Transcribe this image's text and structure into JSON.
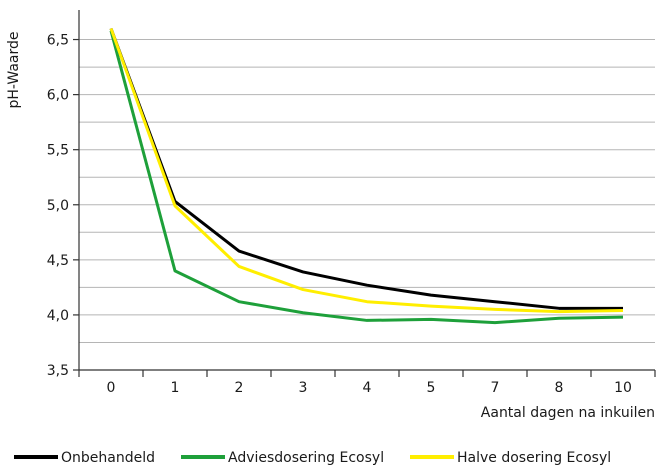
{
  "chart_data": {
    "type": "line",
    "title": "",
    "xlabel": "Aantal dagen na inkuilen",
    "ylabel": "pH-Waarde",
    "categories": [
      "0",
      "1",
      "2",
      "3",
      "4",
      "5",
      "7",
      "8",
      "10"
    ],
    "ylim": [
      3.5,
      6.75
    ],
    "yticks": [
      "3,5",
      "4,0",
      "4,5",
      "5,0",
      "5,5",
      "6,0",
      "6,5"
    ],
    "ytick_values": [
      3.5,
      4.0,
      4.5,
      5.0,
      5.5,
      6.0,
      6.5
    ],
    "grid": true,
    "legend_position": "bottom",
    "series": [
      {
        "name": "Onbehandeld",
        "color": "#000000",
        "values": [
          6.6,
          5.03,
          4.58,
          4.39,
          4.27,
          4.18,
          4.12,
          4.06,
          4.06
        ]
      },
      {
        "name": "Adviesdosering Ecosyl",
        "color": "#1ea03a",
        "values": [
          6.58,
          4.4,
          4.12,
          4.02,
          3.95,
          3.96,
          3.93,
          3.97,
          3.98
        ]
      },
      {
        "name": "Halve dosering Ecosyl",
        "color": "#ffee00",
        "values": [
          6.6,
          4.99,
          4.44,
          4.23,
          4.12,
          4.08,
          4.05,
          4.03,
          4.04
        ]
      }
    ]
  }
}
